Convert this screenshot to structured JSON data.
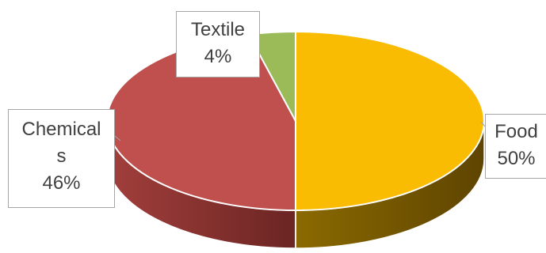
{
  "chart_data": {
    "type": "pie",
    "style": "3d",
    "title": "",
    "legend": "none",
    "start_angle_deg": 0,
    "direction": "clockwise",
    "slices": [
      {
        "name": "Food",
        "value": 50,
        "label": "50%",
        "color": "#f9bc02",
        "side_color_dark": "#5e4400"
      },
      {
        "name": "Chemicals",
        "value": 46,
        "label": "46%",
        "color": "#c0504d",
        "side_color_dark": "#6b2523"
      },
      {
        "name": "Textile",
        "value": 4,
        "label": "4%",
        "color": "#9bbb59",
        "side_color_dark": "#55702a"
      }
    ],
    "label_texts": {
      "textile_name": "Textile",
      "textile_pct": "4%",
      "chemicals_name_line1": "Chemical",
      "chemicals_name_line2": "s",
      "chemicals_pct": "46%",
      "food_name": "Food",
      "food_pct": "50%"
    }
  }
}
